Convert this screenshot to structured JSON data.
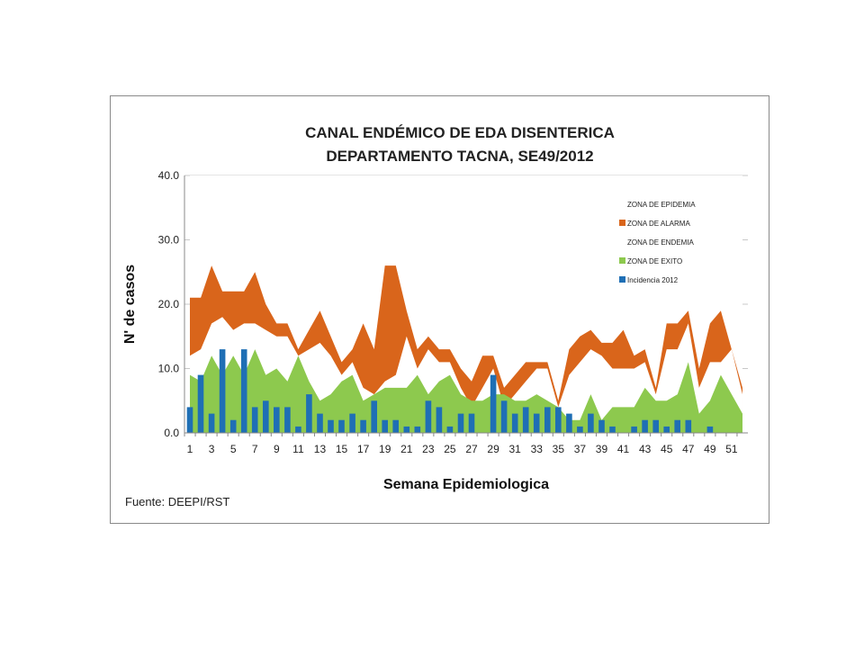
{
  "chart_data": {
    "type": "area",
    "title_line1": "CANAL ENDÉMICO DE EDA DISENTERICA",
    "title_line2": "DEPARTAMENTO TACNA,  SE49/2012",
    "xlabel": "Semana Epidemiologica",
    "ylabel": "N' de casos",
    "ylim": [
      0,
      40
    ],
    "yticks": [
      "0.0",
      "10.0",
      "20.0",
      "30.0",
      "40.0"
    ],
    "ytick_values": [
      0,
      10,
      20,
      30,
      40
    ],
    "grid": true,
    "legend_position": "top-right",
    "source": "Fuente: DEEPI/RST",
    "x": [
      1,
      2,
      3,
      4,
      5,
      6,
      7,
      8,
      9,
      10,
      11,
      12,
      13,
      14,
      15,
      16,
      17,
      18,
      19,
      20,
      21,
      22,
      23,
      24,
      25,
      26,
      27,
      28,
      29,
      30,
      31,
      32,
      33,
      34,
      35,
      36,
      37,
      38,
      39,
      40,
      41,
      42,
      43,
      44,
      45,
      46,
      47,
      48,
      49,
      50,
      51,
      52
    ],
    "xticks": [
      1,
      3,
      5,
      7,
      9,
      11,
      13,
      15,
      17,
      19,
      21,
      23,
      25,
      27,
      29,
      31,
      33,
      35,
      37,
      39,
      41,
      43,
      45,
      47,
      49,
      51
    ],
    "colors": {
      "epidemia": "#ffffff",
      "alarma": "#d9651b",
      "endemia": "#ffffff",
      "exito": "#8dc94e",
      "incidencia": "#1f6fb5"
    },
    "series": [
      {
        "name": "ZONA DE EPIDEMIA",
        "key": "epidemia",
        "kind": "area",
        "values": [
          40,
          40,
          40,
          40,
          40,
          40,
          40,
          40,
          40,
          40,
          40,
          40,
          40,
          40,
          40,
          40,
          40,
          40,
          40,
          40,
          40,
          40,
          40,
          40,
          40,
          40,
          40,
          40,
          40,
          40,
          40,
          40,
          40,
          40,
          40,
          40,
          40,
          40,
          40,
          40,
          40,
          40,
          40,
          40,
          40,
          40,
          40,
          40,
          40,
          40,
          40,
          40
        ]
      },
      {
        "name": "ZONA DE ALARMA",
        "key": "alarma",
        "kind": "area",
        "values": [
          21,
          21,
          26,
          22,
          22,
          22,
          25,
          20,
          17,
          17,
          13,
          16,
          19,
          15,
          11,
          13,
          17,
          13,
          26,
          26,
          19,
          13,
          15,
          13,
          13,
          10,
          8,
          12,
          12,
          7,
          9,
          11,
          11,
          11,
          5,
          13,
          15,
          16,
          14,
          14,
          16,
          12,
          13,
          7,
          17,
          17,
          19,
          10,
          17,
          19,
          13,
          7
        ]
      },
      {
        "name": "ZONA DE ENDEMIA",
        "key": "endemia",
        "kind": "area",
        "values": [
          12,
          13,
          17,
          18,
          16,
          17,
          17,
          16,
          15,
          15,
          12,
          13,
          14,
          12,
          9,
          11,
          7,
          6,
          8,
          9,
          15,
          10,
          13,
          11,
          11,
          7,
          4,
          7,
          10,
          4,
          6,
          8,
          10,
          10,
          4,
          9,
          11,
          13,
          12,
          10,
          10,
          10,
          11,
          6,
          13,
          13,
          17,
          7,
          11,
          11,
          13,
          6
        ]
      },
      {
        "name": "ZONA DE EXITO",
        "key": "exito",
        "kind": "area",
        "values": [
          9,
          8,
          12,
          9,
          12,
          9,
          13,
          9,
          10,
          8,
          12,
          8,
          5,
          6,
          8,
          9,
          5,
          6,
          7,
          7,
          7,
          9,
          6,
          8,
          9,
          6,
          5,
          5,
          6,
          6,
          5,
          5,
          6,
          5,
          4,
          2,
          2,
          6,
          2,
          4,
          4,
          4,
          7,
          5,
          5,
          6,
          11,
          3,
          5,
          9,
          6,
          3
        ]
      },
      {
        "name": "Incidencia 2012",
        "key": "incidencia",
        "kind": "bar",
        "values": [
          4,
          9,
          3,
          13,
          2,
          13,
          4,
          5,
          4,
          4,
          1,
          6,
          3,
          2,
          2,
          3,
          2,
          5,
          2,
          2,
          1,
          1,
          5,
          4,
          1,
          3,
          3,
          null,
          9,
          5,
          3,
          4,
          3,
          4,
          4,
          3,
          1,
          3,
          2,
          1,
          null,
          1,
          2,
          2,
          1,
          2,
          2,
          null,
          1,
          null,
          null,
          null
        ]
      }
    ]
  }
}
